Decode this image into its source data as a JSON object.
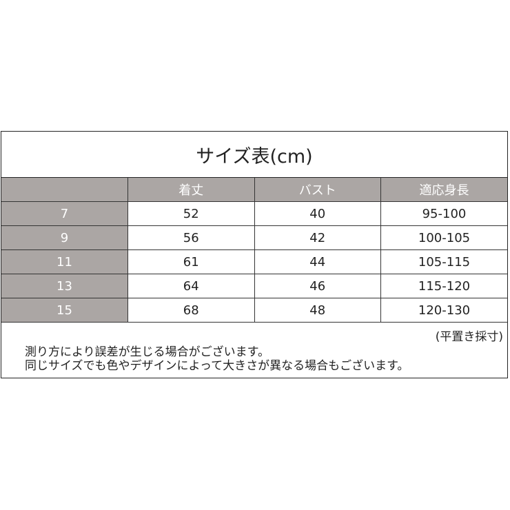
{
  "title": "サイズ表(cm)",
  "headers": [
    "",
    "着丈",
    "バスト",
    "適応身長"
  ],
  "rows": [
    [
      "7",
      "52",
      "40",
      "95-100"
    ],
    [
      "9",
      "56",
      "42",
      "100-105"
    ],
    [
      "11",
      "61",
      "44",
      "105-115"
    ],
    [
      "13",
      "64",
      "46",
      "115-120"
    ],
    [
      "15",
      "68",
      "48",
      "120-130"
    ]
  ],
  "measure_note": "(平置き採寸)",
  "notes": [
    "測り方により誤差が生じる場合がございます。",
    "同じサイズでも色やデザインによって大きさが異なる場合もございます。"
  ],
  "colors": {
    "header_bg": "#aba6a4",
    "border": "#222222"
  }
}
